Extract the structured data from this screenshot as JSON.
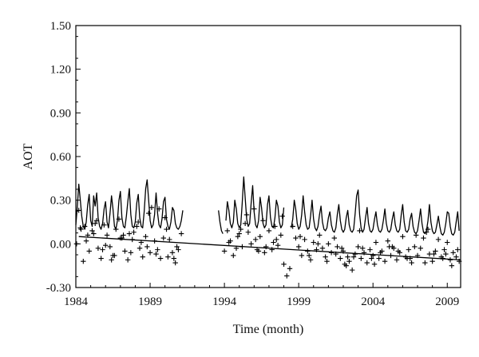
{
  "chart_data": {
    "type": "line",
    "xlabel": "Time (month)",
    "ylabel": "AOT",
    "xlim": [
      1984,
      2009.9
    ],
    "ylim": [
      -0.3,
      1.5
    ],
    "x_ticks": [
      1984,
      1989,
      1994,
      1999,
      2004,
      2009
    ],
    "y_ticks": [
      "-0.30",
      "0.00",
      "0.30",
      "0.60",
      "0.90",
      "1.20",
      "1.50"
    ],
    "grid": false,
    "legend": "none",
    "series": [
      {
        "style": "line",
        "x": [
          1984.0,
          1984.1,
          1984.2,
          1984.3,
          1984.4,
          1984.5,
          1984.6,
          1984.7,
          1984.8,
          1984.9,
          1985.0,
          1985.1,
          1985.2,
          1985.3,
          1985.4,
          1985.5,
          1985.6,
          1985.7,
          1985.8,
          1985.9,
          1986.0,
          1986.1,
          1986.2,
          1986.3,
          1986.4,
          1986.5,
          1986.6,
          1986.7,
          1986.8,
          1986.9,
          1987.0,
          1987.1,
          1987.2,
          1987.3,
          1987.4,
          1987.5,
          1987.6,
          1987.7,
          1987.8,
          1987.9,
          1988.0,
          1988.1,
          1988.2,
          1988.3,
          1988.4,
          1988.5,
          1988.6,
          1988.7,
          1988.8,
          1988.9,
          1989.0,
          1989.1,
          1989.2,
          1989.3,
          1989.4,
          1989.5,
          1989.6,
          1989.7,
          1989.8,
          1989.9,
          1990.0,
          1990.1,
          1990.2,
          1990.3,
          1990.4,
          1990.5,
          1990.6,
          1990.7,
          1990.8,
          1990.9,
          1991.0,
          1991.1,
          1991.2
        ],
        "y": [
          0.13,
          0.26,
          0.41,
          0.3,
          0.19,
          0.12,
          0.1,
          0.15,
          0.27,
          0.34,
          0.16,
          0.12,
          0.33,
          0.26,
          0.35,
          0.18,
          0.12,
          0.1,
          0.14,
          0.24,
          0.29,
          0.15,
          0.11,
          0.21,
          0.33,
          0.24,
          0.12,
          0.1,
          0.16,
          0.3,
          0.36,
          0.18,
          0.12,
          0.11,
          0.19,
          0.29,
          0.38,
          0.2,
          0.12,
          0.11,
          0.15,
          0.28,
          0.34,
          0.18,
          0.12,
          0.11,
          0.22,
          0.38,
          0.44,
          0.3,
          0.16,
          0.11,
          0.13,
          0.2,
          0.35,
          0.21,
          0.13,
          0.11,
          0.17,
          0.29,
          0.32,
          0.17,
          0.12,
          0.1,
          0.15,
          0.25,
          0.23,
          0.14,
          0.11,
          0.1,
          0.12,
          0.16,
          0.23
        ]
      },
      {
        "style": "line",
        "x": [
          1993.6,
          1993.7,
          1993.8,
          1993.9
        ],
        "y": [
          0.23,
          0.15,
          0.09,
          0.07
        ]
      },
      {
        "style": "line",
        "x": [
          1994.1,
          1994.2,
          1994.3,
          1994.4,
          1994.5,
          1994.6,
          1994.7,
          1994.8,
          1994.9,
          1995.0,
          1995.1,
          1995.2,
          1995.3,
          1995.4,
          1995.5,
          1995.6,
          1995.7,
          1995.8,
          1995.9,
          1996.0,
          1996.1,
          1996.2,
          1996.3,
          1996.4,
          1996.5,
          1996.6,
          1996.7,
          1996.8,
          1996.9,
          1997.0,
          1997.1,
          1997.2,
          1997.3,
          1997.4,
          1997.5,
          1997.6,
          1997.7,
          1997.8,
          1997.9,
          1998.0
        ],
        "y": [
          0.16,
          0.29,
          0.23,
          0.14,
          0.11,
          0.15,
          0.3,
          0.24,
          0.14,
          0.11,
          0.13,
          0.28,
          0.46,
          0.31,
          0.17,
          0.12,
          0.14,
          0.28,
          0.4,
          0.22,
          0.13,
          0.11,
          0.16,
          0.32,
          0.25,
          0.14,
          0.11,
          0.13,
          0.27,
          0.33,
          0.18,
          0.12,
          0.11,
          0.18,
          0.3,
          0.26,
          0.15,
          0.11,
          0.13,
          0.25
        ]
      },
      {
        "style": "line",
        "x": [
          1998.5,
          1998.6,
          1998.7,
          1998.8,
          1998.9,
          1999.0,
          1999.1,
          1999.2,
          1999.3,
          1999.4,
          1999.5,
          1999.6,
          1999.7,
          1999.8,
          1999.9,
          2000.0,
          2000.1,
          2000.2,
          2000.3,
          2000.4,
          2000.5,
          2000.6,
          2000.7,
          2000.8,
          2000.9,
          2001.0,
          2001.1,
          2001.2,
          2001.3,
          2001.4,
          2001.5,
          2001.6,
          2001.7,
          2001.8,
          2001.9,
          2002.0,
          2002.1,
          2002.2,
          2002.3,
          2002.4,
          2002.5,
          2002.6,
          2002.7,
          2002.8,
          2002.9,
          2003.0,
          2003.1,
          2003.2,
          2003.3,
          2003.4,
          2003.5,
          2003.6,
          2003.7,
          2003.8,
          2003.9,
          2004.0,
          2004.1,
          2004.2,
          2004.3,
          2004.4,
          2004.5,
          2004.6,
          2004.7,
          2004.8,
          2004.9,
          2005.0,
          2005.1,
          2005.2,
          2005.3,
          2005.4,
          2005.5,
          2005.6,
          2005.7,
          2005.8,
          2005.9,
          2006.0,
          2006.1,
          2006.2,
          2006.3,
          2006.4,
          2006.5,
          2006.6,
          2006.7,
          2006.8,
          2006.9,
          2007.0,
          2007.1,
          2007.2,
          2007.3,
          2007.4,
          2007.5,
          2007.6,
          2007.7,
          2007.8,
          2007.9,
          2008.0,
          2008.1,
          2008.2,
          2008.3,
          2008.4,
          2008.5,
          2008.6,
          2008.7,
          2008.8,
          2008.9,
          2009.0,
          2009.1,
          2009.2,
          2009.3,
          2009.4,
          2009.5,
          2009.6,
          2009.7,
          2009.8
        ],
        "y": [
          0.11,
          0.17,
          0.3,
          0.24,
          0.14,
          0.1,
          0.12,
          0.2,
          0.33,
          0.22,
          0.13,
          0.1,
          0.11,
          0.19,
          0.3,
          0.17,
          0.11,
          0.09,
          0.12,
          0.2,
          0.26,
          0.15,
          0.1,
          0.09,
          0.11,
          0.18,
          0.22,
          0.13,
          0.09,
          0.08,
          0.11,
          0.2,
          0.27,
          0.16,
          0.1,
          0.08,
          0.1,
          0.18,
          0.23,
          0.13,
          0.09,
          0.08,
          0.1,
          0.21,
          0.33,
          0.37,
          0.2,
          0.11,
          0.08,
          0.1,
          0.18,
          0.25,
          0.14,
          0.09,
          0.08,
          0.1,
          0.17,
          0.22,
          0.13,
          0.09,
          0.08,
          0.1,
          0.16,
          0.24,
          0.14,
          0.09,
          0.08,
          0.1,
          0.17,
          0.22,
          0.13,
          0.09,
          0.08,
          0.1,
          0.2,
          0.27,
          0.15,
          0.09,
          0.08,
          0.1,
          0.17,
          0.21,
          0.12,
          0.08,
          0.07,
          0.09,
          0.16,
          0.24,
          0.14,
          0.08,
          0.07,
          0.09,
          0.16,
          0.27,
          0.15,
          0.09,
          0.07,
          0.08,
          0.13,
          0.19,
          0.12,
          0.07,
          0.06,
          0.08,
          0.14,
          0.22,
          0.21,
          0.12,
          0.07,
          0.06,
          0.08,
          0.15,
          0.22,
          0.09
        ]
      },
      {
        "style": "markers-plus",
        "x": [
          1984.05,
          1984.2,
          1984.35,
          1984.5,
          1984.7,
          1984.9,
          1985.1,
          1985.3,
          1985.5,
          1985.7,
          1985.9,
          1986.1,
          1986.3,
          1986.5,
          1986.7,
          1986.9,
          1987.1,
          1987.3,
          1987.5,
          1987.7,
          1987.9,
          1988.1,
          1988.3,
          1988.5,
          1988.7,
          1988.9,
          1989.1,
          1989.3,
          1989.5,
          1989.7,
          1989.9,
          1990.1,
          1990.3,
          1990.5,
          1990.7,
          1990.9,
          1991.1,
          1984.3,
          1984.8,
          1985.4,
          1986.0,
          1986.6,
          1987.2,
          1987.8,
          1988.4,
          1989.0,
          1989.6,
          1990.2,
          1990.8,
          1984.6,
          1985.2,
          1985.8,
          1986.4,
          1987.0,
          1987.6,
          1988.2,
          1988.8,
          1989.4,
          1990.0,
          1990.6,
          1994.0,
          1994.2,
          1994.4,
          1994.6,
          1994.8,
          1995.0,
          1995.2,
          1995.4,
          1995.6,
          1995.8,
          1996.0,
          1996.2,
          1996.4,
          1996.6,
          1996.8,
          1997.0,
          1997.2,
          1997.4,
          1997.6,
          1997.8,
          1998.0,
          1998.2,
          1998.4,
          1994.3,
          1994.9,
          1995.5,
          1996.1,
          1996.7,
          1997.3,
          1997.9,
          1995.1,
          1996.3,
          1997.5,
          1998.6,
          1998.8,
          1999.0,
          1999.2,
          1999.4,
          1999.6,
          1999.8,
          2000.0,
          2000.2,
          2000.4,
          2000.6,
          2000.8,
          2001.0,
          2001.2,
          2001.4,
          2001.6,
          2001.8,
          2002.0,
          2002.2,
          2002.4,
          2002.6,
          2002.8,
          2003.0,
          2003.2,
          2003.4,
          2003.6,
          2003.8,
          2004.0,
          2004.2,
          2004.4,
          2004.6,
          2004.8,
          2005.0,
          2005.2,
          2005.4,
          2005.6,
          2005.8,
          2006.0,
          2006.2,
          2006.4,
          2006.6,
          2006.8,
          2007.0,
          2007.2,
          2007.4,
          2007.6,
          2007.8,
          2008.0,
          2008.2,
          2008.4,
          2008.6,
          2008.8,
          2009.0,
          2009.2,
          2009.4,
          2009.6,
          2009.8,
          1999.1,
          1999.7,
          2000.3,
          2000.9,
          2001.5,
          2002.1,
          2002.7,
          2003.3,
          2003.9,
          2004.5,
          2005.1,
          2005.7,
          2006.3,
          2006.9,
          2007.5,
          2008.1,
          2008.7,
          2009.3,
          2009.7,
          2001.9,
          2002.3,
          2003.1,
          2004.1,
          2005.3,
          2006.5,
          2007.7,
          2008.9
        ],
        "y": [
          0.0,
          0.23,
          0.1,
          -0.12,
          0.02,
          -0.05,
          0.09,
          0.14,
          -0.03,
          -0.1,
          0.13,
          0.06,
          -0.02,
          -0.08,
          0.1,
          0.17,
          0.04,
          -0.05,
          -0.11,
          -0.06,
          0.08,
          0.12,
          -0.03,
          -0.09,
          0.05,
          0.21,
          0.25,
          0.02,
          -0.04,
          -0.1,
          0.04,
          0.1,
          0.03,
          -0.06,
          -0.13,
          -0.04,
          0.07,
          0.11,
          0.06,
          0.16,
          -0.01,
          -0.08,
          0.06,
          0.03,
          0.01,
          -0.06,
          0.24,
          -0.09,
          -0.02,
          0.12,
          0.07,
          -0.04,
          -0.11,
          0.04,
          0.07,
          0.15,
          -0.02,
          -0.07,
          0.18,
          -0.1,
          -0.05,
          0.09,
          0.02,
          -0.08,
          -0.03,
          0.07,
          -0.02,
          0.14,
          0.08,
          0.0,
          0.24,
          -0.04,
          0.05,
          0.16,
          -0.02,
          0.09,
          -0.04,
          0.12,
          -0.01,
          0.06,
          -0.14,
          -0.22,
          -0.17,
          0.01,
          0.05,
          0.2,
          0.03,
          -0.06,
          0.01,
          0.19,
          0.1,
          -0.05,
          0.03,
          0.12,
          0.04,
          -0.02,
          -0.08,
          0.03,
          -0.05,
          -0.11,
          0.01,
          -0.04,
          0.06,
          -0.03,
          -0.09,
          0.0,
          -0.06,
          0.04,
          -0.02,
          -0.1,
          -0.05,
          -0.15,
          -0.12,
          -0.18,
          -0.07,
          -0.02,
          -0.1,
          -0.06,
          -0.13,
          -0.04,
          -0.08,
          0.01,
          -0.1,
          -0.05,
          -0.12,
          0.02,
          -0.08,
          -0.03,
          -0.11,
          -0.06,
          0.05,
          -0.09,
          -0.04,
          -0.13,
          -0.02,
          -0.08,
          -0.03,
          0.04,
          0.08,
          -0.07,
          -0.12,
          -0.05,
          0.03,
          -0.09,
          -0.04,
          0.01,
          -0.11,
          -0.06,
          -0.09,
          -0.12,
          0.05,
          -0.08,
          0.0,
          -0.12,
          -0.07,
          -0.14,
          -0.09,
          -0.03,
          -0.1,
          -0.06,
          -0.02,
          -0.05,
          -0.1,
          0.06,
          -0.13,
          -0.07,
          -0.1,
          -0.15,
          -0.04,
          -0.03,
          -0.09,
          0.09,
          -0.14,
          -0.02,
          -0.1,
          0.1,
          -0.07
        ]
      },
      {
        "style": "trend-line",
        "x": [
          1984.2,
          2009.9
        ],
        "y": [
          0.05,
          -0.11
        ]
      }
    ]
  }
}
